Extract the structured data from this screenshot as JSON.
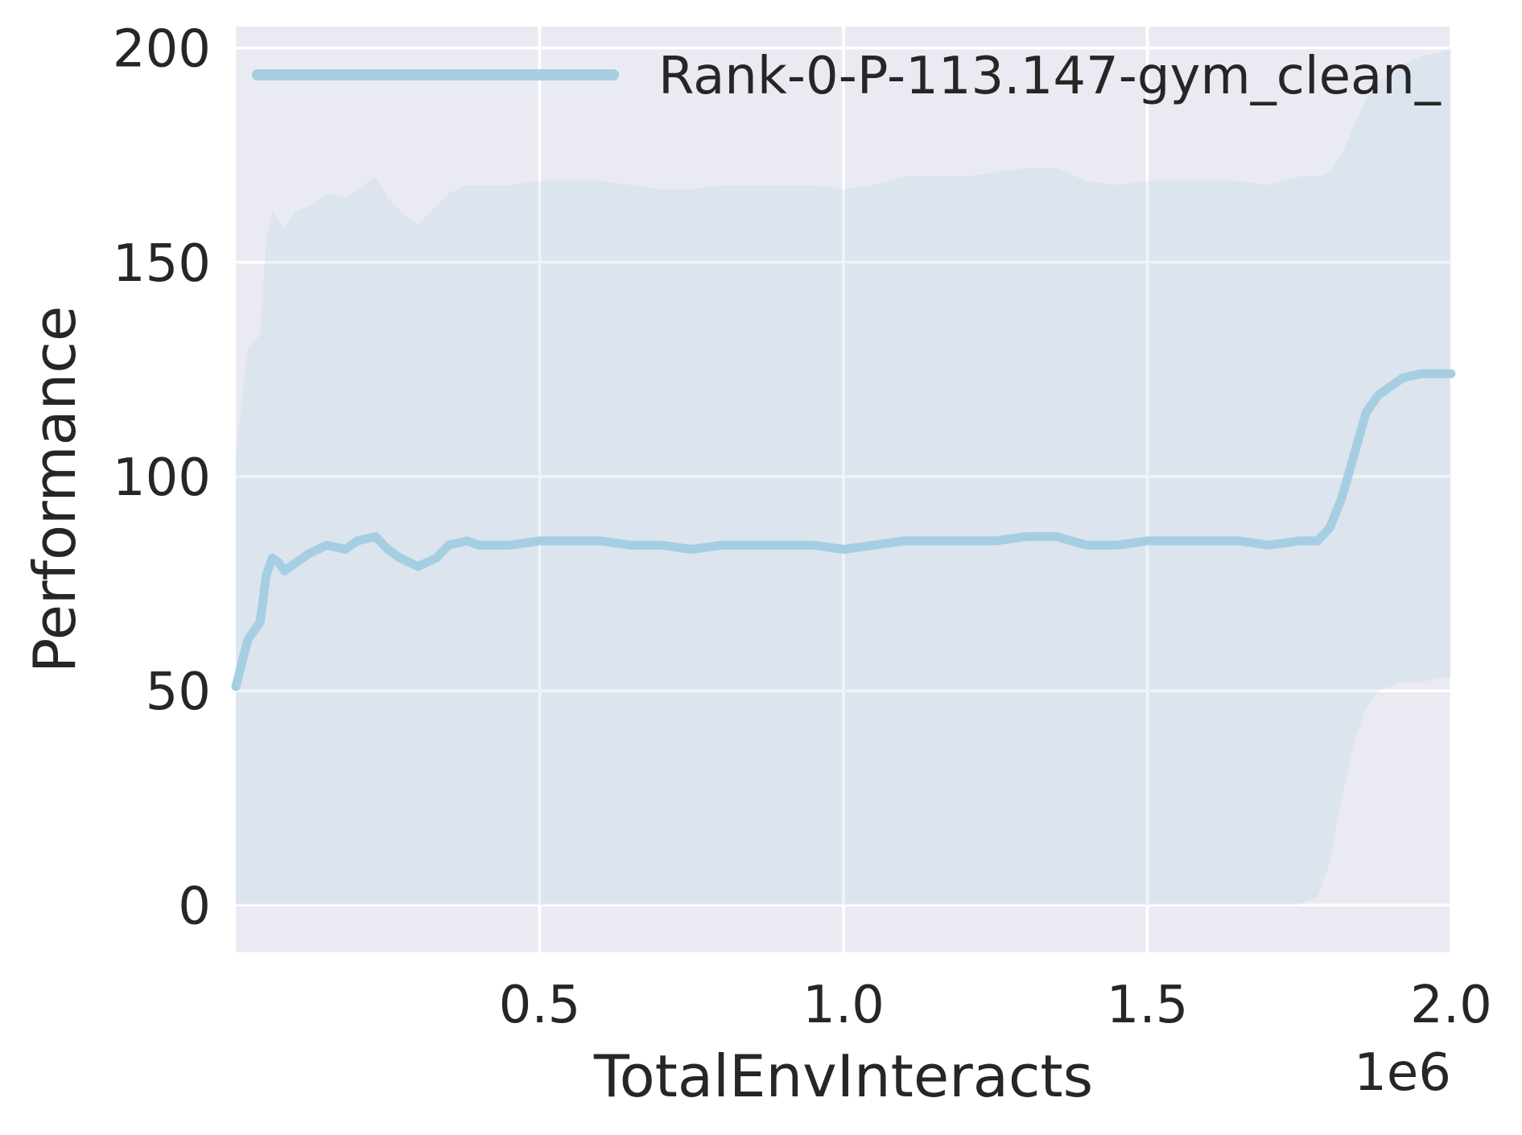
{
  "chart_data": {
    "type": "line",
    "xlabel": "TotalEnvInteracts",
    "ylabel": "Performance",
    "x_offset_label": "1e6",
    "xlim": [
      0.0,
      2.0
    ],
    "ylim": [
      -11,
      205
    ],
    "xticks": [
      0.5,
      1.0,
      1.5,
      2.0
    ],
    "xtick_labels": [
      "0.5",
      "1.0",
      "1.5",
      "2.0"
    ],
    "yticks": [
      0,
      50,
      100,
      150,
      200
    ],
    "ytick_labels": [
      "0",
      "50",
      "100",
      "150",
      "200"
    ],
    "grid": true,
    "legend_position": "top-right",
    "series": [
      {
        "name": "Rank-0-P-113.147-gym_clean_",
        "color": "#a6cee3",
        "x": [
          0.0,
          0.02,
          0.04,
          0.05,
          0.06,
          0.07,
          0.08,
          0.1,
          0.12,
          0.15,
          0.18,
          0.2,
          0.23,
          0.25,
          0.27,
          0.3,
          0.33,
          0.35,
          0.38,
          0.4,
          0.45,
          0.5,
          0.55,
          0.6,
          0.65,
          0.7,
          0.75,
          0.8,
          0.85,
          0.9,
          0.95,
          1.0,
          1.05,
          1.1,
          1.15,
          1.2,
          1.25,
          1.3,
          1.35,
          1.4,
          1.45,
          1.5,
          1.55,
          1.6,
          1.65,
          1.7,
          1.75,
          1.78,
          1.8,
          1.82,
          1.84,
          1.86,
          1.88,
          1.9,
          1.92,
          1.95,
          1.98,
          2.0
        ],
        "y": [
          51,
          62,
          66,
          77,
          81,
          80,
          78,
          80,
          82,
          84,
          83,
          85,
          86,
          83,
          81,
          79,
          81,
          84,
          85,
          84,
          84,
          85,
          85,
          85,
          84,
          84,
          83,
          84,
          84,
          84,
          84,
          83,
          84,
          85,
          85,
          85,
          85,
          86,
          86,
          84,
          84,
          85,
          85,
          85,
          85,
          84,
          85,
          85,
          88,
          95,
          105,
          115,
          119,
          121,
          123,
          124,
          124,
          124
        ],
        "upper": [
          105,
          130,
          133,
          155,
          162,
          160,
          158,
          162,
          163,
          166,
          165,
          167,
          170,
          165,
          162,
          159,
          163,
          166,
          168,
          168,
          168,
          169,
          169,
          169,
          168,
          167,
          167,
          168,
          168,
          168,
          168,
          167,
          168,
          170,
          170,
          170,
          171,
          172,
          172,
          169,
          168,
          169,
          169,
          169,
          169,
          168,
          170,
          170,
          171,
          175,
          182,
          188,
          192,
          194,
          196,
          198,
          199,
          200
        ],
        "lower": [
          0,
          0,
          0,
          0,
          0,
          0,
          0,
          0,
          0,
          0,
          0,
          0,
          0,
          0,
          0,
          0,
          0,
          0,
          0,
          0,
          0,
          0,
          0,
          0,
          0,
          0,
          0,
          0,
          0,
          0,
          0,
          0,
          0,
          0,
          0,
          0,
          0,
          0,
          0,
          0,
          0,
          0,
          0,
          0,
          0,
          0,
          0,
          2,
          10,
          25,
          38,
          46,
          50,
          51,
          52,
          52,
          53,
          53
        ]
      }
    ]
  }
}
